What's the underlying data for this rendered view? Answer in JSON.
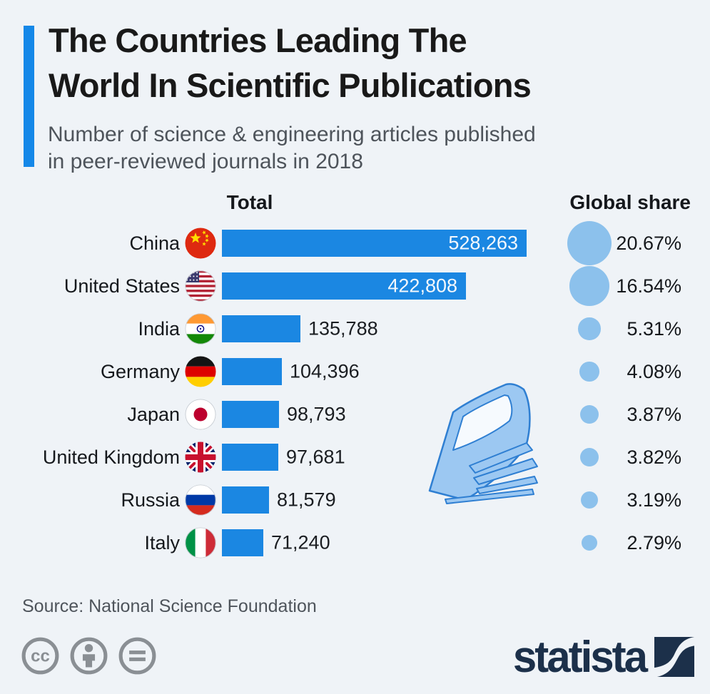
{
  "header": {
    "title_lines": [
      "The Countries Leading The",
      "World In Scientific Publications"
    ],
    "subtitle_lines": [
      "Number of science & engineering articles published",
      "in peer-reviewed journals in 2018"
    ]
  },
  "columns": {
    "total": "Total",
    "global_share": "Global share"
  },
  "chart_data": {
    "type": "bar",
    "orientation": "horizontal",
    "title": "The Countries Leading The World In Scientific Publications",
    "subtitle": "Number of science & engineering articles published in peer-reviewed journals in 2018",
    "categories": [
      "China",
      "United States",
      "India",
      "Germany",
      "Japan",
      "United Kingdom",
      "Russia",
      "Italy"
    ],
    "series": [
      {
        "name": "Total",
        "values": [
          528263,
          422808,
          135788,
          104396,
          98793,
          97681,
          81579,
          71240
        ],
        "labels": [
          "528,263",
          "422,808",
          "135,788",
          "104,396",
          "98,793",
          "97,681",
          "81,579",
          "71,240"
        ]
      },
      {
        "name": "Global share",
        "values": [
          20.67,
          16.54,
          5.31,
          4.08,
          3.87,
          3.82,
          3.19,
          2.79
        ],
        "labels": [
          "20.67%",
          "16.54%",
          "5.31%",
          "4.08%",
          "3.87%",
          "3.82%",
          "3.19%",
          "2.79%"
        ]
      }
    ],
    "xlim": [
      0,
      528263
    ],
    "grid": false,
    "legend": false
  },
  "flags": [
    "china-flag-icon",
    "united-states-flag-icon",
    "india-flag-icon",
    "germany-flag-icon",
    "japan-flag-icon",
    "united-kingdom-flag-icon",
    "russia-flag-icon",
    "italy-flag-icon"
  ],
  "footer": {
    "source": "Source: National Science Foundation",
    "license_icons": [
      "cc-icon",
      "attribution-person-icon",
      "equal-sign-icon"
    ],
    "brand": "statista",
    "brand_mark": "statista-swoosh-icon"
  },
  "watermark_icon": "journal-pages-watermark-icon",
  "colors": {
    "background": "#eff3f7",
    "bar_blue": "#1b87e2",
    "accent_blue": "#1588e8",
    "circle_blue": "#8cc1ec",
    "brand_navy": "#1c304a",
    "title_text": "#191919",
    "muted_text": "#4e545b",
    "license_gray": "#8a8f94"
  }
}
